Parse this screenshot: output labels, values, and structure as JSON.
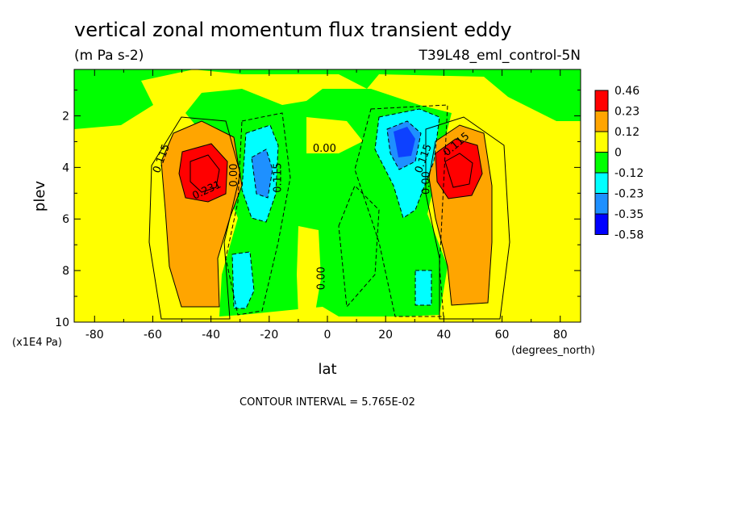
{
  "chart_data": {
    "type": "heatmap",
    "title": "vertical zonal momentum flux transient eddy",
    "units": "(m Pa s-2)",
    "run_label": "T39L48_eml_control-5N",
    "xlabel": "lat",
    "x_units": "(degrees_north)",
    "ylabel": "plev",
    "y_units": "(x1E4 Pa)",
    "xlim": [
      -87,
      87
    ],
    "ylim": [
      10,
      0.2
    ],
    "x_ticks": [
      -80,
      -60,
      -40,
      -20,
      0,
      20,
      40,
      60,
      80
    ],
    "x_tick_labels": [
      "-80",
      "-60",
      "-40",
      "-20",
      "0",
      "20",
      "40",
      "60",
      "80"
    ],
    "y_ticks": [
      2,
      4,
      6,
      8,
      10
    ],
    "y_tick_labels": [
      "2",
      "4",
      "6",
      "8",
      "10"
    ],
    "contour_interval_text": "CONTOUR INTERVAL = 5.765E-02",
    "contour_interval": 0.05765,
    "colorbar": {
      "levels": [
        {
          "label": "0.46",
          "color": "#ff0000"
        },
        {
          "label": "0.23",
          "color": "#ffa500"
        },
        {
          "label": "0.12",
          "color": "#ffff00"
        },
        {
          "label": "0",
          "color": "#00ff00"
        },
        {
          "label": "-0.12",
          "color": "#00ffff"
        },
        {
          "label": "-0.23",
          "color": "#1e90ff"
        },
        {
          "label": "-0.35",
          "color": "#0000ff"
        },
        {
          "label": "-0.58",
          "color": ""
        }
      ]
    },
    "contour_labels": [
      {
        "text": "0.115",
        "lat": -56,
        "plev": 3.7,
        "rotate": -70
      },
      {
        "text": "0.231",
        "lat": -41,
        "plev": 5.0,
        "rotate": -25
      },
      {
        "text": "0.00",
        "lat": -31,
        "plev": 4.3,
        "rotate": -90
      },
      {
        "text": "0.115",
        "lat": -16,
        "plev": 4.4,
        "rotate": -90
      },
      {
        "text": "0.00",
        "lat": -1,
        "plev": 3.4,
        "rotate": 0
      },
      {
        "text": "0.00",
        "lat": -1,
        "plev": 8.3,
        "rotate": -90
      },
      {
        "text": "0.115",
        "lat": 34,
        "plev": 3.7,
        "rotate": -70
      },
      {
        "text": "0.00",
        "lat": 35,
        "plev": 4.6,
        "rotate": -90
      },
      {
        "text": "0.115",
        "lat": 45,
        "plev": 3.2,
        "rotate": -40
      }
    ]
  }
}
